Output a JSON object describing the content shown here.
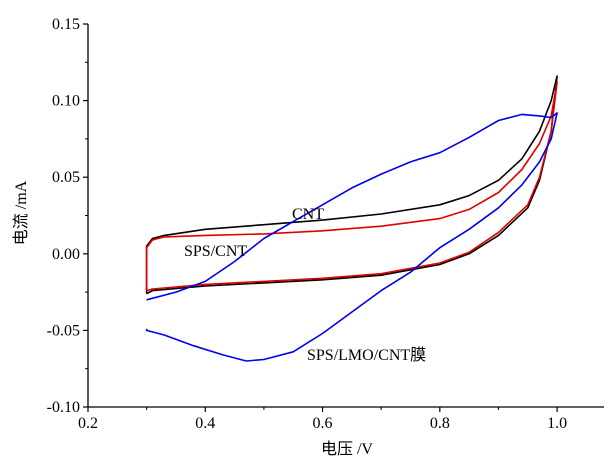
{
  "chart_data": {
    "type": "line",
    "title": "",
    "xlabel": "电压 /V",
    "ylabel": "电流 /mA",
    "xlim": [
      0.2,
      1.08
    ],
    "ylim": [
      -0.1,
      0.15
    ],
    "xticks": [
      0.2,
      0.4,
      0.6,
      0.8,
      1.0
    ],
    "xtick_labels": [
      "0.2",
      "0.4",
      "0.6",
      "0.8",
      "1.0"
    ],
    "yticks": [
      -0.1,
      -0.05,
      0.0,
      0.05,
      0.1,
      0.15
    ],
    "ytick_labels": [
      "-0.10",
      "-0.05",
      "0.00",
      "0.05",
      "0.10",
      "0.15"
    ],
    "grid": false,
    "legend": "none",
    "annotations": [
      {
        "text": "CNT",
        "series": 0
      },
      {
        "text": "SPS/CNT",
        "series": 1
      },
      {
        "text": "SPS/LMO/CNT膜",
        "series": 2
      }
    ],
    "series": [
      {
        "name": "CNT",
        "color": "#000000",
        "x": [
          0.3,
          0.3,
          0.31,
          0.33,
          0.4,
          0.5,
          0.6,
          0.7,
          0.8,
          0.85,
          0.9,
          0.94,
          0.97,
          0.99,
          1.0,
          0.99,
          0.97,
          0.95,
          0.9,
          0.85,
          0.8,
          0.7,
          0.6,
          0.5,
          0.4,
          0.31,
          0.3
        ],
        "y": [
          -0.026,
          0.005,
          0.01,
          0.012,
          0.016,
          0.019,
          0.022,
          0.026,
          0.032,
          0.038,
          0.048,
          0.062,
          0.08,
          0.1,
          0.116,
          0.08,
          0.048,
          0.03,
          0.012,
          0.0,
          -0.007,
          -0.014,
          -0.017,
          -0.019,
          -0.021,
          -0.024,
          -0.026
        ]
      },
      {
        "name": "SPS/CNT",
        "color": "#e00000",
        "x": [
          0.3,
          0.3,
          0.31,
          0.33,
          0.4,
          0.5,
          0.6,
          0.7,
          0.8,
          0.85,
          0.9,
          0.94,
          0.97,
          0.99,
          1.0,
          0.99,
          0.97,
          0.95,
          0.9,
          0.85,
          0.8,
          0.7,
          0.6,
          0.5,
          0.4,
          0.31,
          0.3
        ],
        "y": [
          -0.024,
          0.004,
          0.009,
          0.011,
          0.012,
          0.013,
          0.015,
          0.018,
          0.023,
          0.029,
          0.04,
          0.055,
          0.072,
          0.09,
          0.112,
          0.08,
          0.05,
          0.032,
          0.014,
          0.001,
          -0.006,
          -0.013,
          -0.016,
          -0.018,
          -0.02,
          -0.023,
          -0.024
        ]
      },
      {
        "name": "SPS/LMO/CNT膜",
        "color": "#0000ee",
        "x": [
          0.3,
          0.35,
          0.4,
          0.45,
          0.5,
          0.55,
          0.6,
          0.65,
          0.7,
          0.75,
          0.8,
          0.85,
          0.9,
          0.94,
          0.97,
          0.99,
          1.0,
          0.99,
          0.97,
          0.94,
          0.9,
          0.85,
          0.8,
          0.75,
          0.7,
          0.65,
          0.6,
          0.55,
          0.5,
          0.47,
          0.43,
          0.38,
          0.33,
          0.3,
          0.3
        ],
        "y": [
          -0.03,
          -0.025,
          -0.018,
          -0.005,
          0.01,
          0.021,
          0.032,
          0.043,
          0.052,
          0.06,
          0.066,
          0.076,
          0.087,
          0.091,
          0.09,
          0.089,
          0.092,
          0.075,
          0.06,
          0.045,
          0.03,
          0.016,
          0.004,
          -0.012,
          -0.024,
          -0.038,
          -0.052,
          -0.064,
          -0.069,
          -0.07,
          -0.066,
          -0.06,
          -0.053,
          -0.05,
          -0.049
        ]
      }
    ]
  }
}
